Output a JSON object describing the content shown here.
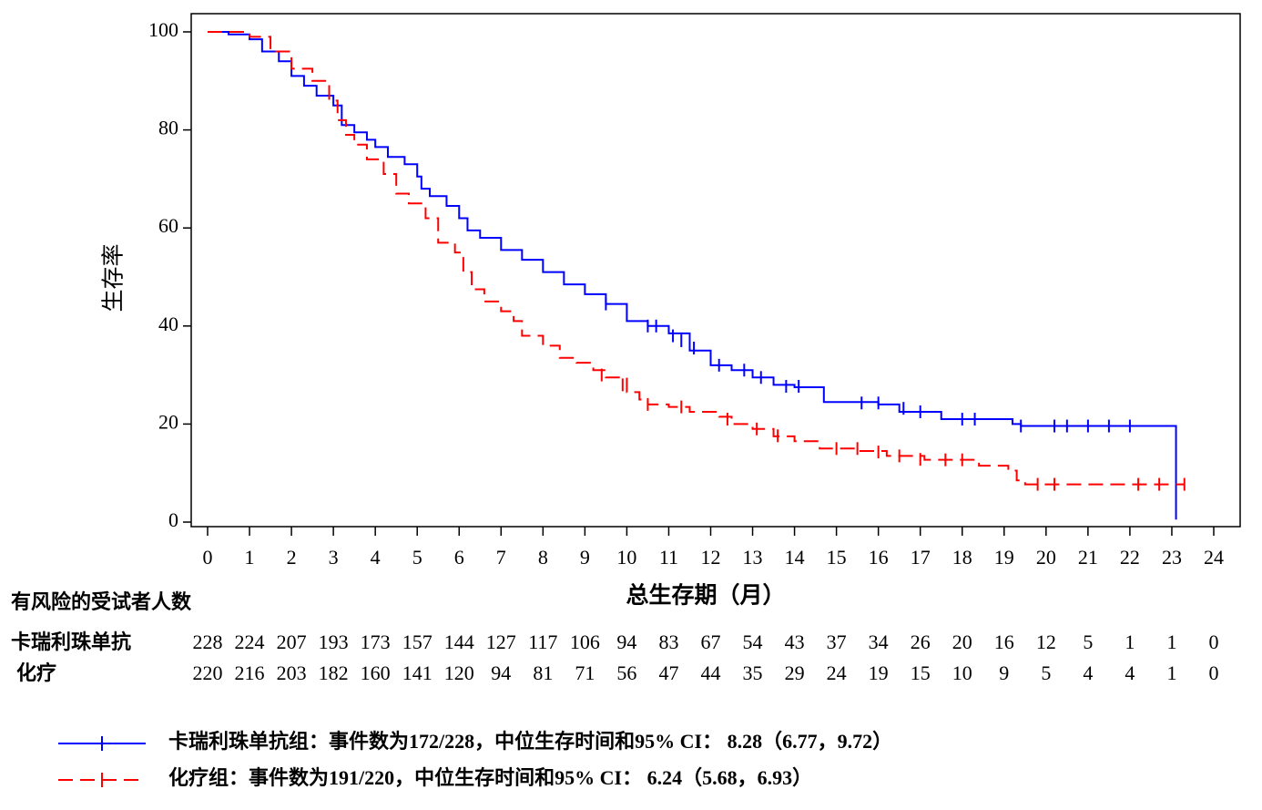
{
  "chart_data": {
    "type": "km",
    "xlabel": "总生存期（月）",
    "ylabel": "生存率",
    "xlim": [
      0,
      24
    ],
    "ylim": [
      0,
      100
    ],
    "xticks": [
      0,
      1,
      2,
      3,
      4,
      5,
      6,
      7,
      8,
      9,
      10,
      11,
      12,
      13,
      14,
      15,
      16,
      17,
      18,
      19,
      20,
      21,
      22,
      23,
      24
    ],
    "yticks": [
      0,
      20,
      40,
      60,
      80,
      100
    ],
    "series": [
      {
        "name": "卡瑞利珠单抗组：事件数为172/228，中位生存时间和95% CI： 8.28（6.77，9.72）",
        "color": "#0000ff",
        "dash": false,
        "x": [
          0,
          0.5,
          1,
          1.3,
          1.7,
          2,
          2.3,
          2.6,
          3,
          3.2,
          3.5,
          3.8,
          4,
          4.3,
          4.7,
          5,
          5.1,
          5.3,
          5.7,
          6,
          6.2,
          6.5,
          7,
          7.5,
          8,
          8.5,
          9,
          9.5,
          10,
          10.5,
          11,
          11.5,
          12,
          12.5,
          13,
          13.5,
          14,
          14.7,
          16,
          16.5,
          17.5,
          19.2,
          19.4,
          23.1,
          23.1
        ],
        "values": [
          100,
          99.5,
          98.5,
          96,
          94,
          91,
          89,
          87,
          85,
          81,
          79.5,
          78,
          76.5,
          74.5,
          73,
          70.5,
          68,
          66.5,
          64.5,
          62,
          59.5,
          58,
          55.5,
          53.5,
          51,
          48.5,
          46.5,
          44.5,
          41,
          40,
          38.5,
          35,
          32,
          31,
          29.5,
          28,
          27.5,
          24.5,
          24,
          22.5,
          21,
          20,
          19.6,
          19.6,
          0.5
        ],
        "censor_x": [
          9.5,
          10.5,
          10.7,
          11.1,
          11.3,
          11.6,
          12.2,
          12.8,
          13.2,
          13.8,
          14.1,
          15.6,
          16.0,
          16.6,
          17.0,
          18.0,
          18.3,
          19.4,
          20.2,
          20.5,
          21.0,
          21.5,
          22.0
        ],
        "censor_values": [
          44.5,
          40,
          40,
          38,
          37,
          35.5,
          32,
          31,
          29.5,
          27.7,
          27.7,
          24.3,
          24.3,
          23.2,
          22.5,
          21,
          21,
          19.6,
          19.6,
          19.6,
          19.6,
          19.6,
          19.6
        ]
      },
      {
        "name": "化疗组：事件数为191/220，中位生存时间和95% CI： 6.24（5.68，6.93）",
        "color": "#ff0000",
        "dash": true,
        "x": [
          0,
          1,
          1.5,
          2,
          2.5,
          2.9,
          3.1,
          3.3,
          3.5,
          3.8,
          4.2,
          4.5,
          4.8,
          5.2,
          5.5,
          5.9,
          6.1,
          6.3,
          6.6,
          7,
          7.3,
          7.5,
          8,
          8.4,
          8.8,
          9.2,
          9.5,
          10,
          10.3,
          10.5,
          11,
          11.5,
          12.2,
          12.5,
          13,
          13.5,
          14,
          14.6,
          15.5,
          16.2,
          17.1,
          18.4,
          19.1,
          19.3,
          19.5,
          23.3
        ],
        "values": [
          100,
          99,
          96,
          92.5,
          90,
          86,
          82,
          79,
          77,
          74,
          71,
          67,
          65,
          62,
          57,
          55,
          51,
          47.5,
          45,
          43,
          41,
          38,
          36,
          33.5,
          32.5,
          31,
          29.5,
          26.5,
          25,
          24,
          23.5,
          22.5,
          21.5,
          20,
          19,
          17.5,
          16.5,
          15,
          14.5,
          13.5,
          12.7,
          11.5,
          10.5,
          8.5,
          7.7,
          7.7
        ],
        "censor_x": [
          9.4,
          9.9,
          10.5,
          11.3,
          12.4,
          13.1,
          13.6,
          15.0,
          15.5,
          16.0,
          16.5,
          17.0,
          17.6,
          18.0,
          19.8,
          20.2,
          22.2,
          22.7,
          23.3
        ],
        "censor_values": [
          30,
          28,
          24,
          23.5,
          21,
          19,
          17.6,
          15,
          15,
          14.3,
          13.5,
          12.8,
          12.7,
          12.7,
          7.7,
          7.7,
          7.7,
          7.7,
          7.7
        ]
      }
    ],
    "risk_table": {
      "title": "有风险的受试者人数",
      "rows": [
        {
          "label": "卡瑞利珠单抗",
          "values": [
            228,
            224,
            207,
            193,
            173,
            157,
            144,
            127,
            117,
            106,
            94,
            83,
            67,
            54,
            43,
            37,
            34,
            26,
            20,
            16,
            12,
            5,
            1,
            1,
            0
          ]
        },
        {
          "label": "化疗",
          "values": [
            220,
            216,
            203,
            182,
            160,
            141,
            120,
            94,
            81,
            71,
            56,
            47,
            44,
            35,
            29,
            24,
            19,
            15,
            10,
            9,
            5,
            4,
            4,
            1,
            0
          ]
        }
      ]
    }
  }
}
